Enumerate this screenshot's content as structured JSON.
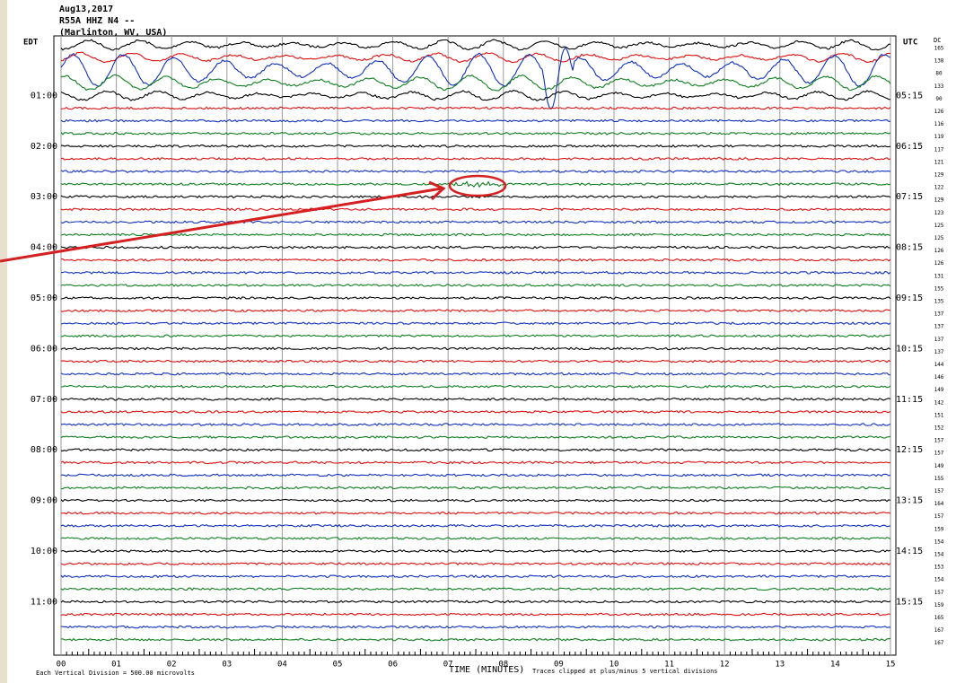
{
  "header": {
    "date": "Aug13,2017",
    "station": "R55A HHZ N4 --",
    "location": "(Marlinton, WV, USA)"
  },
  "left_zone": "EDT",
  "right_zone": "UTC",
  "unit_label": "DC",
  "left_times": [
    "01:00",
    "02:00",
    "03:00",
    "04:00",
    "05:00",
    "06:00",
    "07:00",
    "08:00",
    "09:00",
    "10:00",
    "11:00"
  ],
  "right_times": [
    "05:15",
    "06:15",
    "07:15",
    "08:15",
    "09:15",
    "10:15",
    "11:15",
    "12:15",
    "13:15",
    "14:15",
    "15:15"
  ],
  "trace_numbers": [
    "165",
    "138",
    "80",
    "133",
    "90",
    "126",
    "116",
    "119",
    "117",
    "121",
    "129",
    "122",
    "129",
    "123",
    "125",
    "125",
    "126",
    "126",
    "131",
    "155",
    "135",
    "137",
    "137",
    "137",
    "137",
    "144",
    "146",
    "149",
    "142",
    "151",
    "152",
    "157",
    "157",
    "149",
    "155",
    "157",
    "164",
    "157",
    "159",
    "154",
    "154",
    "153",
    "154",
    "157",
    "159",
    "165",
    "167",
    "167"
  ],
  "x_ticks": [
    "00",
    "01",
    "02",
    "03",
    "04",
    "05",
    "06",
    "07",
    "08",
    "09",
    "10",
    "11",
    "12",
    "13",
    "14",
    "15"
  ],
  "footer": {
    "scale": "Each Vertical Division = 500.00 microvolts",
    "axis_title": "TIME (MINUTES)",
    "clip_note": "Traces clipped at plus/minus 5 vertical divisions"
  }
}
